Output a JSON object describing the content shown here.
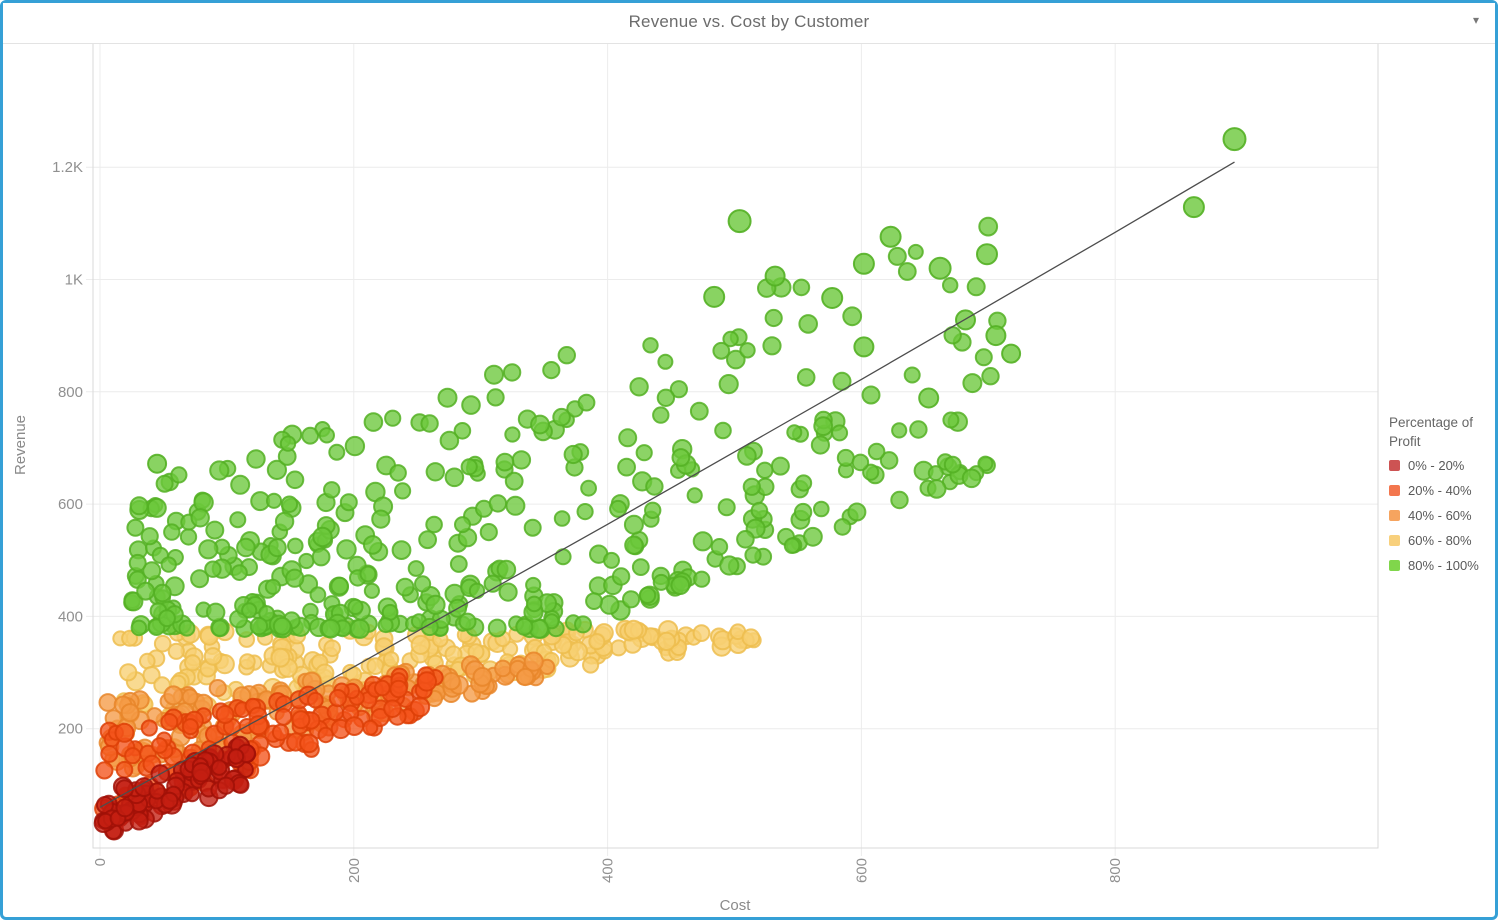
{
  "window": {
    "title": "Revenue vs. Cost by Customer",
    "dropdown_icon": "▾",
    "accent_color": "#35a0d6"
  },
  "chart_data": {
    "type": "scatter",
    "title": "Revenue vs. Cost by Customer",
    "xlabel": "Cost",
    "ylabel": "Revenue",
    "xlim": [
      0,
      1010
    ],
    "ylim": [
      0,
      1420
    ],
    "grid": true,
    "x_ticks": {
      "values": [
        0,
        200,
        400,
        600,
        800
      ],
      "labels": [
        "0",
        "200",
        "400",
        "600",
        "800"
      ]
    },
    "y_ticks": {
      "values": [
        200,
        400,
        600,
        800,
        1000,
        1200
      ],
      "labels": [
        "200",
        "400",
        "600",
        "800",
        "1K",
        "1.2K"
      ]
    },
    "legend": {
      "title": "Percentage of Profit",
      "position": "right",
      "items": [
        {
          "label": "0% - 20%",
          "color": "#cd5353"
        },
        {
          "label": "20% - 40%",
          "color": "#f3764e"
        },
        {
          "label": "40% - 60%",
          "color": "#f6a45f"
        },
        {
          "label": "60% - 80%",
          "color": "#f8d07c"
        },
        {
          "label": "80% - 100%",
          "color": "#80d64b"
        }
      ]
    },
    "seed": 20240917,
    "point_radius": [
      7,
      9.2
    ],
    "series": [
      {
        "name": "0% - 20%",
        "fill": "#c41f12",
        "stroke": "#a01107",
        "count": 95,
        "gen": {
          "cost": [
            0,
            118,
            1.25
          ],
          "lower": [
            8,
            0.8
          ],
          "upper": [
            82,
            0.82
          ],
          "upper_max": 172,
          "spread_pow": 1.0
        }
      },
      {
        "name": "20% - 40%",
        "fill": "#f4531b",
        "stroke": "#dd3f07",
        "count": 140,
        "gen": {
          "cost": [
            0,
            265,
            1.15
          ],
          "lower": [
            32,
            0.78
          ],
          "upper": [
            195,
            0.42
          ],
          "upper_max": 312,
          "spread_pow": 1.0
        }
      },
      {
        "name": "40% - 60%",
        "fill": "#f59b46",
        "stroke": "#e8862a",
        "count": 160,
        "gen": {
          "cost": [
            5,
            360,
            1.1
          ],
          "lower": [
            112,
            0.5
          ],
          "upper": [
            258,
            0.19
          ],
          "upper_max": 330,
          "spread_pow": 1.0
        }
      },
      {
        "name": "60% - 80%",
        "fill": "#f7cf72",
        "stroke": "#edbd4d",
        "count": 215,
        "gen": {
          "cost": [
            15,
            520,
            1.05
          ],
          "lower": [
            192,
            0.31
          ],
          "upper": [
            377,
            0
          ],
          "upper_max": 377,
          "spread_pow": 0.85
        }
      },
      {
        "name": "80% - 100%",
        "fill": "#6cc83b",
        "stroke": "#53b023",
        "count": 430,
        "gen": {
          "cost": [
            25,
            720,
            1.4
          ],
          "lower": [
            62,
            0.85
          ],
          "lower_min": 378,
          "upper": [
            618,
            0.76
          ],
          "upper_max": 1255,
          "spread_pow": 2.1
        }
      }
    ],
    "outlier_points": [
      {
        "series": "80% - 100%",
        "cost": 504,
        "revenue": 1104,
        "size": 11
      },
      {
        "series": "80% - 100%",
        "cost": 894,
        "revenue": 1250,
        "size": 11
      },
      {
        "series": "80% - 100%",
        "cost": 862,
        "revenue": 1129,
        "size": 10
      },
      {
        "series": "80% - 100%",
        "cost": 699,
        "revenue": 1045,
        "size": 10
      },
      {
        "series": "80% - 100%",
        "cost": 662,
        "revenue": 1020,
        "size": 10.5
      },
      {
        "series": "80% - 100%",
        "cost": 623,
        "revenue": 1076,
        "size": 10
      },
      {
        "series": "80% - 100%",
        "cost": 602,
        "revenue": 1028,
        "size": 10
      },
      {
        "series": "80% - 100%",
        "cost": 532,
        "revenue": 1006,
        "size": 9.5
      },
      {
        "series": "80% - 100%",
        "cost": 577,
        "revenue": 967,
        "size": 10
      },
      {
        "series": "80% - 100%",
        "cost": 484,
        "revenue": 969,
        "size": 10
      },
      {
        "series": "80% - 100%",
        "cost": 706,
        "revenue": 900,
        "size": 9.5
      },
      {
        "series": "80% - 100%",
        "cost": 718,
        "revenue": 868,
        "size": 9
      },
      {
        "series": "80% - 100%",
        "cost": 45,
        "revenue": 672,
        "size": 9
      },
      {
        "series": "80% - 100%",
        "cost": 653,
        "revenue": 789,
        "size": 9.5
      },
      {
        "series": "80% - 100%",
        "cost": 682,
        "revenue": 928,
        "size": 9.5
      },
      {
        "series": "80% - 100%",
        "cost": 602,
        "revenue": 880,
        "size": 9.5
      }
    ],
    "trend_line": {
      "color": "#4d4d4d",
      "points": [
        [
          0,
          60
        ],
        [
          100,
          185
        ],
        [
          200,
          310
        ],
        [
          300,
          437
        ],
        [
          400,
          564
        ],
        [
          500,
          693
        ],
        [
          600,
          822
        ],
        [
          700,
          953
        ],
        [
          800,
          1084
        ],
        [
          894,
          1209
        ]
      ]
    }
  }
}
